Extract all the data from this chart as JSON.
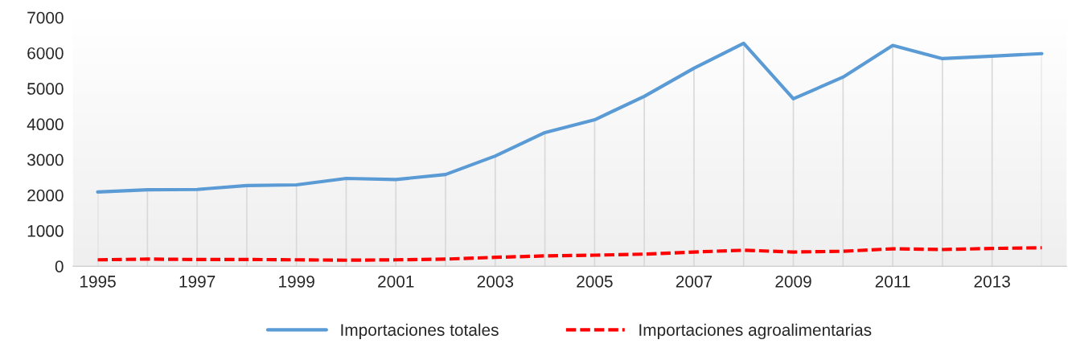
{
  "chart_data": {
    "type": "line",
    "categories": [
      "1995",
      null,
      "1997",
      null,
      "1999",
      null,
      "2001",
      null,
      "2003",
      null,
      "2005",
      null,
      "2007",
      null,
      "2009",
      null,
      "2011",
      null,
      "2013",
      null
    ],
    "series": [
      {
        "name": "Importaciones totales",
        "color": "#5b9bd5",
        "line_style": "solid",
        "values": [
          2090,
          2150,
          2160,
          2270,
          2290,
          2470,
          2440,
          2580,
          3100,
          3760,
          4120,
          4780,
          5570,
          6270,
          4710,
          5320,
          6210,
          5840,
          5910,
          5980
        ]
      },
      {
        "name": "Importaciones agroalimentarias",
        "color": "#ff0000",
        "line_style": "dashed",
        "values": [
          180,
          200,
          190,
          190,
          180,
          170,
          180,
          200,
          250,
          290,
          310,
          340,
          400,
          450,
          400,
          420,
          490,
          470,
          500,
          520
        ]
      }
    ],
    "ylim": [
      0,
      7000
    ],
    "yticks": [
      0,
      1000,
      2000,
      3000,
      4000,
      5000,
      6000,
      7000
    ],
    "grid": "x",
    "legend": "bottom",
    "marker": "none"
  }
}
